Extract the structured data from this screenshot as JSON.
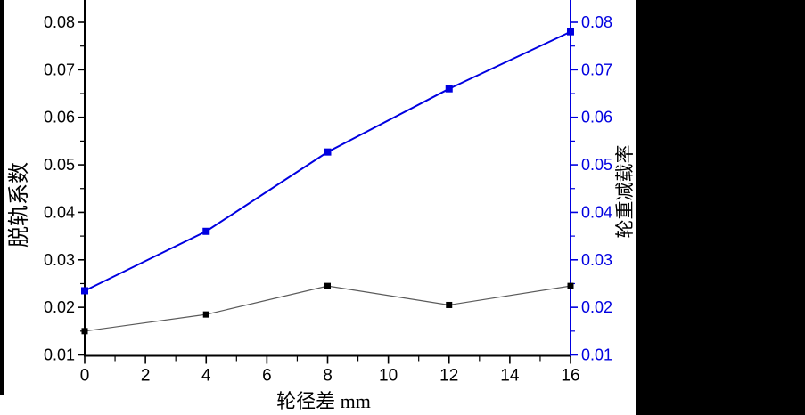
{
  "figure": {
    "background_color": "#ffffff",
    "left_stripe_color": "#000000",
    "right_band_color": "#000000"
  },
  "chart_data": {
    "type": "line",
    "title": "",
    "xlabel": "轮径差 mm",
    "ylabel_left": "脱轨系数",
    "ylabel_right": "轮重减载率",
    "xlim": [
      0,
      16
    ],
    "ylim": [
      0.01,
      0.08
    ],
    "grid": false,
    "legend": "none",
    "x_major_ticks": [
      0,
      2,
      4,
      6,
      8,
      10,
      12,
      14,
      16
    ],
    "x_tick_labels": [
      "0",
      "2",
      "4",
      "6",
      "8",
      "10",
      "12",
      "14",
      "16"
    ],
    "x_minor_ticks": [
      1,
      3,
      5,
      7,
      9,
      11,
      13,
      15
    ],
    "y_major_ticks": [
      0.01,
      0.02,
      0.03,
      0.04,
      0.05,
      0.06,
      0.07,
      0.08
    ],
    "y_tick_labels": [
      "0.01",
      "0.02",
      "0.03",
      "0.04",
      "0.05",
      "0.06",
      "0.07",
      "0.08"
    ],
    "y_minor_ticks": [
      0.015,
      0.025,
      0.035,
      0.045,
      0.055,
      0.065,
      0.075
    ],
    "axis_colors": {
      "left": "#000000",
      "bottom": "#000000",
      "right": "#0000e0"
    },
    "tick_label_colors": {
      "left": "#000000",
      "bottom": "#000000",
      "right": "#0000e0"
    },
    "x": [
      0,
      4,
      8,
      12,
      16
    ],
    "series": [
      {
        "name": "脱轨系数",
        "axis": "left",
        "marker": "square",
        "marker_color": "#000000",
        "marker_size": 7,
        "line_color": "#5a5a5a",
        "line_width": 1.2,
        "values": [
          0.015,
          0.0185,
          0.0245,
          0.0205,
          0.0245
        ]
      },
      {
        "name": "轮重减载率",
        "axis": "right",
        "marker": "square",
        "marker_color": "#0000e0",
        "marker_size": 8,
        "line_color": "#0000e0",
        "line_width": 2,
        "values": [
          0.0235,
          0.036,
          0.0527,
          0.066,
          0.078
        ]
      }
    ]
  }
}
